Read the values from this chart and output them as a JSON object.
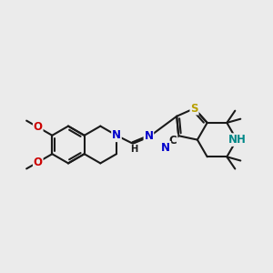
{
  "bg": "#ebebeb",
  "bc": "#1a1a1a",
  "bw": 1.5,
  "figsize": [
    3.0,
    3.0
  ],
  "dpi": 100,
  "N_blue": "#0000cc",
  "N_teal": "#008888",
  "S_col": "#b8a000",
  "O_col": "#cc0000",
  "C_col": "#1a1a1a",
  "fs": 8.5,
  "fss": 7.2,
  "xlim": [
    0,
    10
  ],
  "ylim": [
    2,
    9
  ]
}
